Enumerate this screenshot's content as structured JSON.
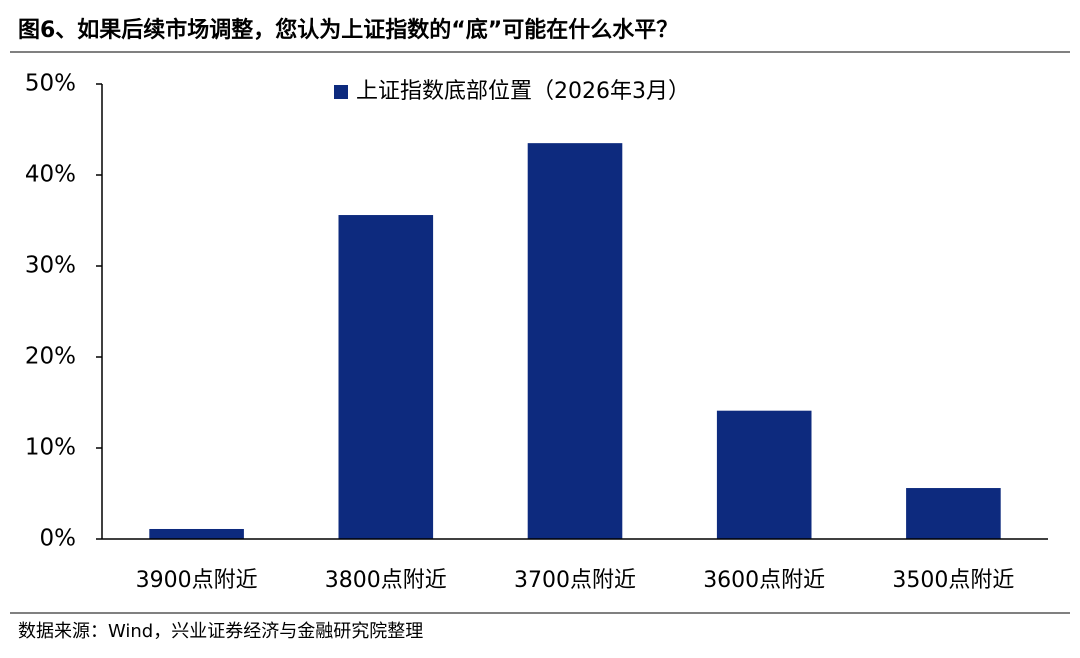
{
  "chart_data": {
    "type": "bar",
    "title": "图6、如果后续市场调整，您认为上证指数的“底”可能在什么水平？",
    "source": "数据来源：Wind，兴业证券经济与金融研究院整理",
    "categories": [
      "3900点附近",
      "3800点附近",
      "3700点附近",
      "3600点附近",
      "3500点附近"
    ],
    "series": [
      {
        "name": "上证指数底部位置（2026年3月）",
        "color": "#0d2a7e",
        "values": [
          1.1,
          35.6,
          43.5,
          14.1,
          5.6
        ]
      }
    ],
    "ylim": [
      0,
      50
    ],
    "yticks": [
      {
        "value": 0,
        "label": "0%"
      },
      {
        "value": 10,
        "label": "10%"
      },
      {
        "value": 20,
        "label": "20%"
      },
      {
        "value": 30,
        "label": "30%"
      },
      {
        "value": 40,
        "label": "40%"
      },
      {
        "value": 50,
        "label": "50%"
      }
    ],
    "grid": false
  }
}
